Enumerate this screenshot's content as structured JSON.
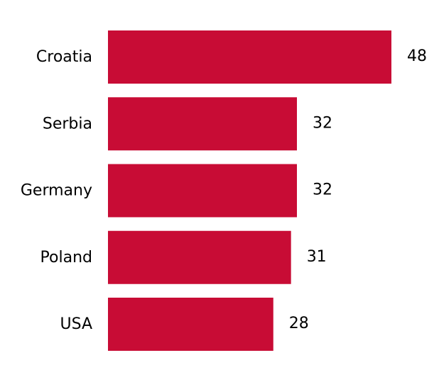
{
  "chart_data": {
    "type": "bar",
    "orientation": "horizontal",
    "categories": [
      "Croatia",
      "Serbia",
      "Germany",
      "Poland",
      "USA"
    ],
    "values": [
      48,
      32,
      32,
      31,
      28
    ],
    "value_labels": [
      "48",
      "32",
      "32",
      "31",
      "28"
    ],
    "title": "",
    "xlabel": "",
    "ylabel": "",
    "xlim": [
      0,
      48
    ],
    "grid": false,
    "axes_visible": false,
    "bar_color": "#C80C35"
  }
}
